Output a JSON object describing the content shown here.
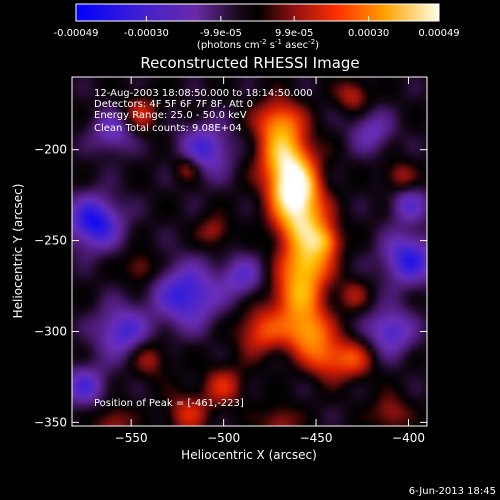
{
  "colorbar": {
    "ticks": [
      "-0.00049",
      "-0.00030",
      "-9.9e-05",
      "9.9e-05",
      "0.00030",
      "0.00049"
    ],
    "tick_values": [
      -0.00049,
      -0.0003,
      -9.9e-05,
      9.9e-05,
      0.0003,
      0.00049
    ],
    "unit_prefix": "(photons cm",
    "unit_sup1": "-2",
    "unit_mid": " s",
    "unit_sup2": "-1",
    "unit_mid2": " asec",
    "unit_sup3": "-2",
    "unit_suffix": ")",
    "range": [
      -0.00049,
      0.00049
    ]
  },
  "chart_data": {
    "type": "heatmap",
    "title": "Reconstructed RHESSI Image",
    "xlabel": "Heliocentric X (arcsec)",
    "ylabel": "Heliocentric Y (arcsec)",
    "xlim": [
      -582,
      -390
    ],
    "ylim": [
      -352,
      -160
    ],
    "xticks": [
      -550,
      -500,
      -450,
      -400
    ],
    "yticks": [
      -200,
      -250,
      -300,
      -350
    ],
    "xtick_labels": [
      "−550",
      "−500",
      "−450",
      "−400"
    ],
    "ytick_labels": [
      "−200",
      "−250",
      "−300",
      "−350"
    ],
    "annotations": {
      "line1": "12-Aug-2003 18:08:50.000 to 18:14:50.000",
      "line2": "Detectors: 4F 5F 6F 7F 8F, Att 0",
      "line3": "Energy Range: 25.0 - 50.0 keV",
      "line4": "Clean     Total counts: 9.08E+04",
      "peak": "Position of Peak = [-461,-223]"
    },
    "peak_position": [
      -461,
      -223
    ],
    "colormap": [
      "#0000ff",
      "#5a2ac8",
      "#7a2ec4",
      "#1a1a40",
      "#000000",
      "#a01010",
      "#ff4000",
      "#ffa000",
      "#ffffff"
    ]
  },
  "footer": {
    "date": "6-Jun-2013 18:45"
  }
}
